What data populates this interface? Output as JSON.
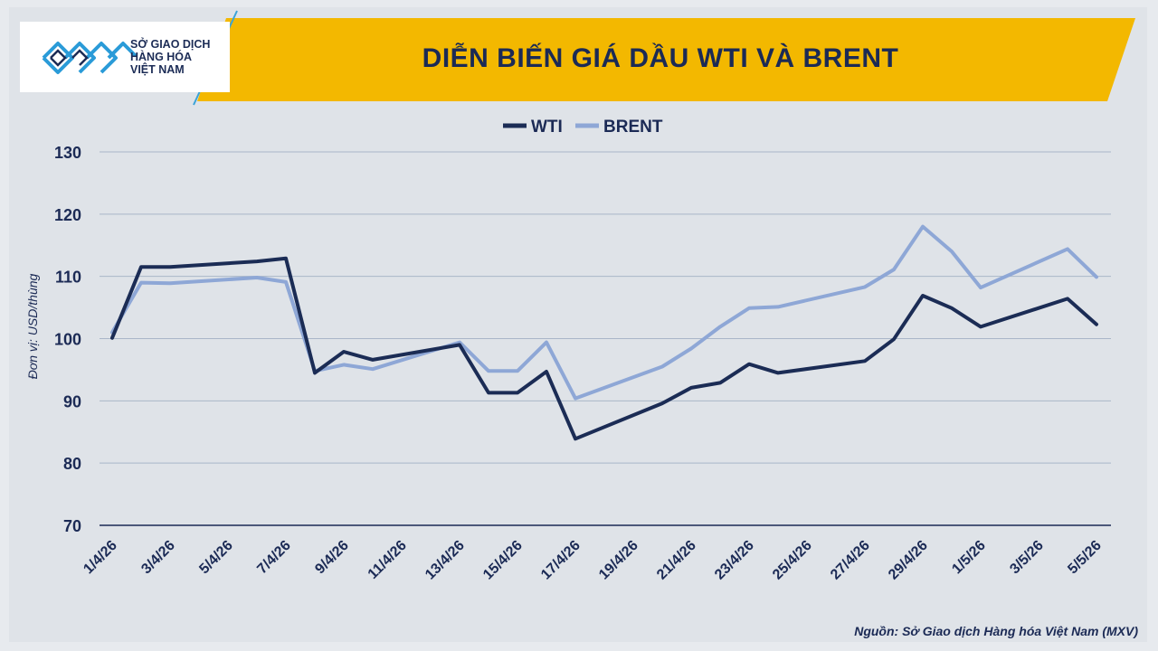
{
  "brand": {
    "line1": "SỞ GIAO DỊCH",
    "line2": "HÀNG HÓA",
    "line3": "VIỆT NAM"
  },
  "colors": {
    "header_gold": "#f3b800",
    "navy": "#1b2a55",
    "wti": "#1b2c55",
    "brent": "#8ea7d6",
    "grid": "#a9b6c8"
  },
  "source": "Nguồn: Sở Giao dịch Hàng hóa Việt Nam (MXV)",
  "chart_data": {
    "type": "line",
    "title": "DIỄN BIẾN GIÁ DẦU WTI VÀ BRENT",
    "ylabel": "Đơn vị: USD/thùng",
    "xlabel": "",
    "ylim": [
      70,
      130
    ],
    "yticks": [
      70,
      80,
      90,
      100,
      110,
      120,
      130
    ],
    "grid": true,
    "legend": "top-center",
    "x": [
      "1/4/26",
      "2/4/26",
      "3/4/26",
      "6/4/26",
      "7/4/26",
      "8/4/26",
      "9/4/26",
      "10/4/26",
      "13/4/26",
      "14/4/26",
      "15/4/26",
      "16/4/26",
      "17/4/26",
      "20/4/26",
      "21/4/26",
      "22/4/26",
      "23/4/26",
      "24/4/26",
      "27/4/26",
      "28/4/26",
      "29/4/26",
      "30/4/26",
      "1/5/26",
      "4/5/26",
      "5/5/26"
    ],
    "xtick_labels": [
      "1/4/26",
      "3/4/26",
      "5/4/26",
      "7/4/26",
      "9/4/26",
      "11/4/26",
      "13/4/26",
      "15/4/26",
      "17/4/26",
      "19/4/26",
      "21/4/26",
      "23/4/26",
      "25/4/26",
      "27/4/26",
      "29/4/26",
      "1/5/26",
      "3/5/26",
      "5/5/26"
    ],
    "series": [
      {
        "name": "WTI",
        "values": [
          100.1,
          111.5,
          111.5,
          112.4,
          112.9,
          94.5,
          97.9,
          96.6,
          99.0,
          91.3,
          91.3,
          94.7,
          83.9,
          89.6,
          92.1,
          92.9,
          95.9,
          94.5,
          96.4,
          99.9,
          106.9,
          104.9,
          101.9,
          106.4,
          102.3
        ]
      },
      {
        "name": "BRENT",
        "values": [
          101.0,
          109.0,
          108.9,
          109.8,
          109.1,
          94.8,
          95.8,
          95.1,
          99.4,
          94.8,
          94.8,
          99.4,
          90.4,
          95.5,
          98.4,
          101.9,
          104.9,
          105.1,
          108.3,
          111.1,
          118.0,
          114.0,
          108.2,
          114.4,
          109.9
        ]
      }
    ]
  }
}
